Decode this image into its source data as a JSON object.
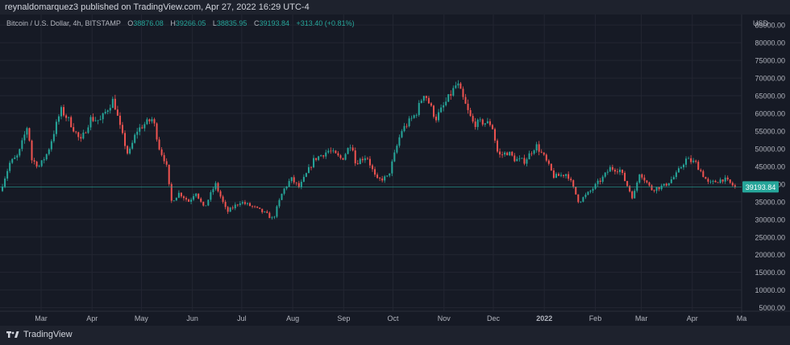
{
  "header": {
    "publisher": "reynaldomarquez3 published on TradingView.com, Apr 27, 2022 16:29 UTC-4"
  },
  "legend": {
    "symbol": "Bitcoin / U.S. Dollar, 4h, BITSTAMP",
    "open_label": "O",
    "open": "38876.08",
    "high_label": "H",
    "high": "39266.05",
    "low_label": "L",
    "low": "38835.95",
    "close_label": "C",
    "close": "39193.84",
    "change": "+313.40 (+0.81%)"
  },
  "footer": {
    "brand": "TradingView"
  },
  "colors": {
    "background": "#161a25",
    "grid": "#232632",
    "up": "#26a69a",
    "down": "#ef5350",
    "text": "#b2b5be"
  },
  "chart_data": {
    "type": "candlestick",
    "interval": "4h",
    "currency_label": "USD",
    "y_ticks": [
      "85000.00",
      "80000.00",
      "75000.00",
      "70000.00",
      "65000.00",
      "60000.00",
      "55000.00",
      "50000.00",
      "45000.00",
      "40000.00",
      "35000.00",
      "30000.00",
      "25000.00",
      "20000.00",
      "15000.00",
      "10000.00",
      "5000.00"
    ],
    "ylim": [
      4000,
      88000
    ],
    "x_labels": [
      {
        "label": "Mar",
        "date": "2021-03-01"
      },
      {
        "label": "Apr",
        "date": "2021-04-01"
      },
      {
        "label": "May",
        "date": "2021-05-01"
      },
      {
        "label": "Jun",
        "date": "2021-06-01"
      },
      {
        "label": "Jul",
        "date": "2021-07-01"
      },
      {
        "label": "Aug",
        "date": "2021-08-01"
      },
      {
        "label": "Sep",
        "date": "2021-09-01"
      },
      {
        "label": "Oct",
        "date": "2021-10-01"
      },
      {
        "label": "Nov",
        "date": "2021-11-01"
      },
      {
        "label": "Dec",
        "date": "2021-12-01"
      },
      {
        "label": "2022",
        "date": "2022-01-01",
        "bold": true
      },
      {
        "label": "Feb",
        "date": "2022-02-01"
      },
      {
        "label": "Mar",
        "date": "2022-03-01"
      },
      {
        "label": "Apr",
        "date": "2022-04-01"
      },
      {
        "label": "Ma",
        "date": "2022-05-01"
      }
    ],
    "x_range": [
      "2021-02-04",
      "2022-05-01"
    ],
    "price_path": [
      [
        "2021-02-04",
        38000
      ],
      [
        "2021-02-10",
        46000
      ],
      [
        "2021-02-15",
        48000
      ],
      [
        "2021-02-21",
        57000
      ],
      [
        "2021-02-23",
        47000
      ],
      [
        "2021-02-28",
        45000
      ],
      [
        "2021-03-05",
        49000
      ],
      [
        "2021-03-13",
        61000
      ],
      [
        "2021-03-18",
        58000
      ],
      [
        "2021-03-25",
        52000
      ],
      [
        "2021-03-31",
        58500
      ],
      [
        "2021-04-06",
        58000
      ],
      [
        "2021-04-14",
        64000
      ],
      [
        "2021-04-18",
        56000
      ],
      [
        "2021-04-23",
        48000
      ],
      [
        "2021-04-28",
        55000
      ],
      [
        "2021-05-03",
        57000
      ],
      [
        "2021-05-08",
        58500
      ],
      [
        "2021-05-12",
        50000
      ],
      [
        "2021-05-16",
        46000
      ],
      [
        "2021-05-19",
        35000
      ],
      [
        "2021-05-24",
        37500
      ],
      [
        "2021-05-30",
        35000
      ],
      [
        "2021-06-03",
        38000
      ],
      [
        "2021-06-08",
        33000
      ],
      [
        "2021-06-15",
        40000
      ],
      [
        "2021-06-22",
        32000
      ],
      [
        "2021-06-30",
        35000
      ],
      [
        "2021-07-08",
        33500
      ],
      [
        "2021-07-16",
        31500
      ],
      [
        "2021-07-20",
        30000
      ],
      [
        "2021-07-26",
        38000
      ],
      [
        "2021-07-31",
        41500
      ],
      [
        "2021-08-05",
        39000
      ],
      [
        "2021-08-14",
        47000
      ],
      [
        "2021-08-23",
        49500
      ],
      [
        "2021-08-31",
        47000
      ],
      [
        "2021-09-06",
        52000
      ],
      [
        "2021-09-08",
        46000
      ],
      [
        "2021-09-15",
        48000
      ],
      [
        "2021-09-21",
        41000
      ],
      [
        "2021-09-28",
        42000
      ],
      [
        "2021-10-06",
        55000
      ],
      [
        "2021-10-15",
        60000
      ],
      [
        "2021-10-20",
        66000
      ],
      [
        "2021-10-27",
        58500
      ],
      [
        "2021-11-02",
        63000
      ],
      [
        "2021-11-09",
        68500
      ],
      [
        "2021-11-16",
        60000
      ],
      [
        "2021-11-19",
        57000
      ],
      [
        "2021-11-24",
        57500
      ],
      [
        "2021-11-30",
        57000
      ],
      [
        "2021-12-04",
        48000
      ],
      [
        "2021-12-10",
        49000
      ],
      [
        "2021-12-14",
        47000
      ],
      [
        "2021-12-20",
        46500
      ],
      [
        "2021-12-27",
        51000
      ],
      [
        "2022-01-01",
        47500
      ],
      [
        "2022-01-07",
        42000
      ],
      [
        "2022-01-15",
        43000
      ],
      [
        "2022-01-22",
        35000
      ],
      [
        "2022-01-28",
        37500
      ],
      [
        "2022-02-06",
        42000
      ],
      [
        "2022-02-10",
        44500
      ],
      [
        "2022-02-16",
        44000
      ],
      [
        "2022-02-24",
        36000
      ],
      [
        "2022-02-28",
        43500
      ],
      [
        "2022-03-07",
        38500
      ],
      [
        "2022-03-15",
        39500
      ],
      [
        "2022-03-22",
        42500
      ],
      [
        "2022-03-28",
        47000
      ],
      [
        "2022-04-03",
        46000
      ],
      [
        "2022-04-11",
        40000
      ],
      [
        "2022-04-20",
        41500
      ],
      [
        "2022-04-27",
        39193.84
      ]
    ],
    "last_price": {
      "value": 39193.84,
      "label": "39193.84"
    }
  }
}
